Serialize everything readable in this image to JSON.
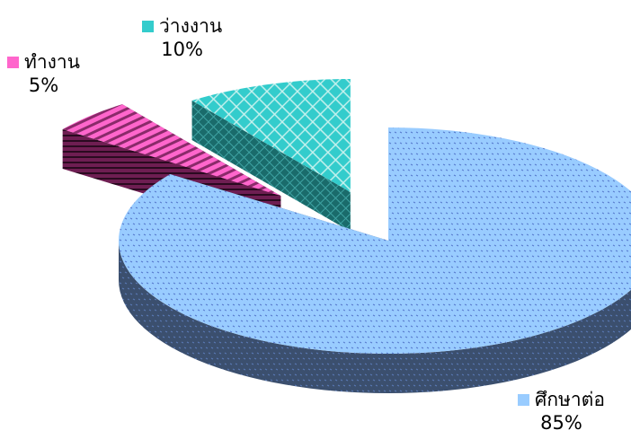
{
  "chart_data": {
    "type": "pie",
    "style": "3d-exploded",
    "slices": [
      {
        "label": "ศึกษาต่อ",
        "value": 85,
        "percent_label": "85%",
        "color": "#99ccff",
        "pattern": "dotted"
      },
      {
        "label": "ทำงาน",
        "value": 5,
        "percent_label": "5%",
        "color": "#ff66cc",
        "pattern": "diagonal-stripes"
      },
      {
        "label": "ว่างงาน",
        "value": 10,
        "percent_label": "10%",
        "color": "#33cccc",
        "pattern": "crosshatch"
      }
    ]
  }
}
